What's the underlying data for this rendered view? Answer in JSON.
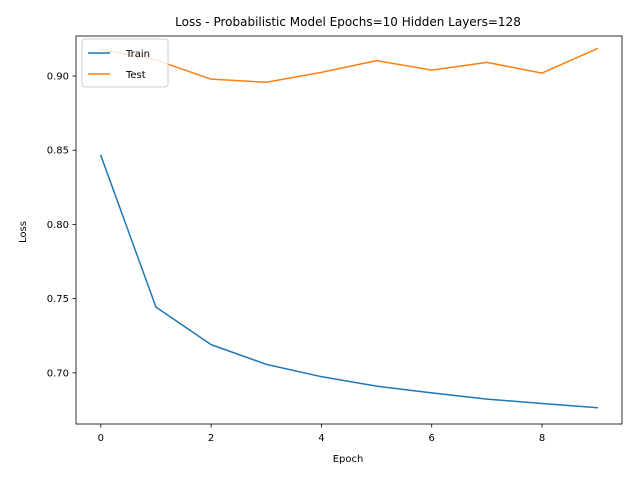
{
  "chart_data": {
    "type": "line",
    "title": "Loss - Probabilistic Model Epochs=10 Hidden Layers=128",
    "xlabel": "Epoch",
    "ylabel": "Loss",
    "x": [
      0,
      1,
      2,
      3,
      4,
      5,
      6,
      7,
      8,
      9
    ],
    "xlim": [
      -0.45,
      9.45
    ],
    "ylim": [
      0.6655,
      0.927
    ],
    "xticks": [
      0,
      2,
      4,
      6,
      8
    ],
    "yticks": [
      0.7,
      0.75,
      0.8,
      0.85,
      0.9
    ],
    "xtick_labels": [
      "0",
      "2",
      "4",
      "6",
      "8"
    ],
    "ytick_labels": [
      "0.70",
      "0.75",
      "0.80",
      "0.85",
      "0.90"
    ],
    "grid": false,
    "legend_position": "upper left",
    "series": [
      {
        "name": "Train",
        "color": "#1f77b4",
        "values": [
          0.8465,
          0.7443,
          0.719,
          0.7057,
          0.6974,
          0.691,
          0.6865,
          0.6823,
          0.6793,
          0.6765
        ]
      },
      {
        "name": "Test",
        "color": "#ff7f0e",
        "values": [
          0.918,
          0.9108,
          0.8979,
          0.8958,
          0.9025,
          0.9104,
          0.904,
          0.9092,
          0.902,
          0.9185
        ]
      }
    ]
  }
}
